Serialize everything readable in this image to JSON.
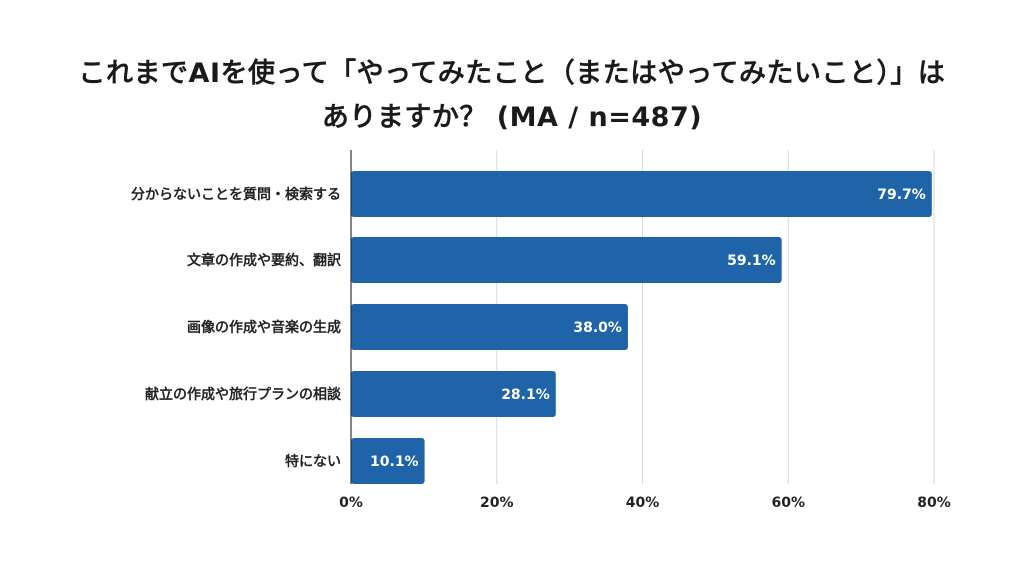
{
  "title_line1": "これまでAIを使って「やってみたこと（またはやってみたいこと）」は",
  "title_line2": "ありますか？ (MA / n=487)",
  "colors": {
    "bar": "#1f63a8",
    "grid": "#d9d9d9",
    "axis": "#333333"
  },
  "chart_data": {
    "type": "bar",
    "orientation": "horizontal",
    "categories": [
      "分からないことを質問・検索する",
      "文章の作成や要約、翻訳",
      "画像の作成や音楽の生成",
      "献立の作成や旅行プランの相談",
      "特にない"
    ],
    "values": [
      79.7,
      59.1,
      38.0,
      28.1,
      10.1
    ],
    "value_labels": [
      "79.7%",
      "59.1%",
      "38.0%",
      "28.1%",
      "10.1%"
    ],
    "xticks": [
      0,
      20,
      40,
      60,
      80
    ],
    "xtick_labels": [
      "0%",
      "20%",
      "40%",
      "60%",
      "80%"
    ],
    "xlim": [
      0,
      80
    ],
    "grid": true
  }
}
